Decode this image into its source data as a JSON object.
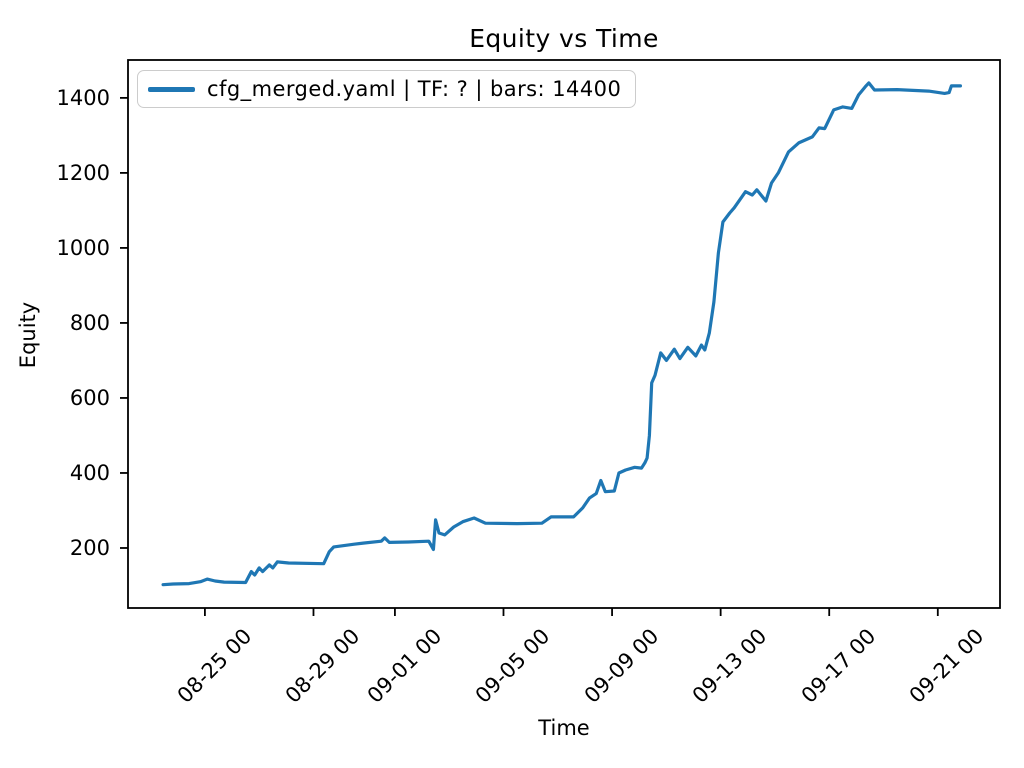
{
  "chart_data": {
    "type": "line",
    "title": "Equity vs Time",
    "xlabel": "Time",
    "ylabel": "Equity",
    "grid": false,
    "legend_position": "upper-left",
    "x_tick_labels": [
      "08-25 00",
      "08-29 00",
      "09-01 00",
      "09-05 00",
      "09-09 00",
      "09-13 00",
      "09-17 00",
      "09-21 00"
    ],
    "y_tick_labels": [
      200,
      400,
      600,
      800,
      1000,
      1200,
      1400
    ],
    "xlim": [
      "08-22 04:00",
      "09-23 07:00"
    ],
    "ylim": [
      40,
      1501
    ],
    "axis_color": "#000000",
    "background_color": "#ffffff",
    "series": [
      {
        "name": "cfg_merged.yaml | TF: ? | bars: 14400",
        "color": "#1f77b4",
        "points": [
          [
            "08-23 11:00",
            102
          ],
          [
            "08-23 20:00",
            104
          ],
          [
            "08-24 10:00",
            105
          ],
          [
            "08-24 20:00",
            110
          ],
          [
            "08-25 02:00",
            117
          ],
          [
            "08-25 09:00",
            112
          ],
          [
            "08-25 17:00",
            109
          ],
          [
            "08-26 12:00",
            108
          ],
          [
            "08-26 17:00",
            137
          ],
          [
            "08-26 20:00",
            128
          ],
          [
            "08-27 00:00",
            147
          ],
          [
            "08-27 03:00",
            137
          ],
          [
            "08-27 09:00",
            155
          ],
          [
            "08-27 12:00",
            147
          ],
          [
            "08-27 16:00",
            163
          ],
          [
            "08-28 02:00",
            160
          ],
          [
            "08-29 09:00",
            158
          ],
          [
            "08-29 14:00",
            190
          ],
          [
            "08-29 18:00",
            203
          ],
          [
            "08-30 12:00",
            210
          ],
          [
            "08-30 20:00",
            213
          ],
          [
            "08-31 12:00",
            218
          ],
          [
            "08-31 15:00",
            227
          ],
          [
            "08-31 19:00",
            215
          ],
          [
            "09-01 12:00",
            216
          ],
          [
            "09-02 06:00",
            218
          ],
          [
            "09-02 10:00",
            196
          ],
          [
            "09-02 12:00",
            275
          ],
          [
            "09-02 15:00",
            240
          ],
          [
            "09-02 20:00",
            235
          ],
          [
            "09-03 04:00",
            256
          ],
          [
            "09-03 12:00",
            270
          ],
          [
            "09-03 22:00",
            280
          ],
          [
            "09-04 08:00",
            266
          ],
          [
            "09-05 12:00",
            265
          ],
          [
            "09-06 10:00",
            266
          ],
          [
            "09-06 18:00",
            283
          ],
          [
            "09-07 14:00",
            283
          ],
          [
            "09-07 22:00",
            307
          ],
          [
            "09-08 04:00",
            333
          ],
          [
            "09-08 10:00",
            345
          ],
          [
            "09-08 14:00",
            380
          ],
          [
            "09-08 18:00",
            350
          ],
          [
            "09-09 02:00",
            352
          ],
          [
            "09-09 06:00",
            400
          ],
          [
            "09-09 12:00",
            408
          ],
          [
            "09-09 20:00",
            415
          ],
          [
            "09-10 02:00",
            413
          ],
          [
            "09-10 05:00",
            427
          ],
          [
            "09-10 07:00",
            440
          ],
          [
            "09-10 09:00",
            500
          ],
          [
            "09-10 11:00",
            640
          ],
          [
            "09-10 14:00",
            660
          ],
          [
            "09-10 19:00",
            720
          ],
          [
            "09-11 00:00",
            700
          ],
          [
            "09-11 07:00",
            730
          ],
          [
            "09-11 12:00",
            705
          ],
          [
            "09-11 19:00",
            735
          ],
          [
            "09-12 02:00",
            712
          ],
          [
            "09-12 07:00",
            741
          ],
          [
            "09-12 10:00",
            728
          ],
          [
            "09-12 14:00",
            773
          ],
          [
            "09-12 18:00",
            856
          ],
          [
            "09-12 22:00",
            987
          ],
          [
            "09-13 02:00",
            1069
          ],
          [
            "09-13 08:00",
            1093
          ],
          [
            "09-13 12:00",
            1107
          ],
          [
            "09-13 22:00",
            1150
          ],
          [
            "09-14 04:00",
            1141
          ],
          [
            "09-14 08:00",
            1155
          ],
          [
            "09-14 16:00",
            1125
          ],
          [
            "09-14 21:00",
            1173
          ],
          [
            "09-15 03:00",
            1200
          ],
          [
            "09-15 12:00",
            1256
          ],
          [
            "09-15 21:00",
            1280
          ],
          [
            "09-16 09:00",
            1296
          ],
          [
            "09-16 15:00",
            1320
          ],
          [
            "09-16 20:00",
            1318
          ],
          [
            "09-17 04:00",
            1368
          ],
          [
            "09-17 12:00",
            1376
          ],
          [
            "09-17 20:00",
            1372
          ],
          [
            "09-18 02:00",
            1408
          ],
          [
            "09-18 08:00",
            1430
          ],
          [
            "09-18 11:00",
            1440
          ],
          [
            "09-18 16:00",
            1421
          ],
          [
            "09-19 12:00",
            1422
          ],
          [
            "09-20 16:00",
            1418
          ],
          [
            "09-21 06:00",
            1412
          ],
          [
            "09-21 10:00",
            1414
          ],
          [
            "09-21 12:00",
            1432
          ],
          [
            "09-21 20:00",
            1432
          ]
        ]
      }
    ],
    "legend": {
      "label": "cfg_merged.yaml | TF: ? | bars: 14400",
      "border_color": "#cccccc"
    }
  }
}
